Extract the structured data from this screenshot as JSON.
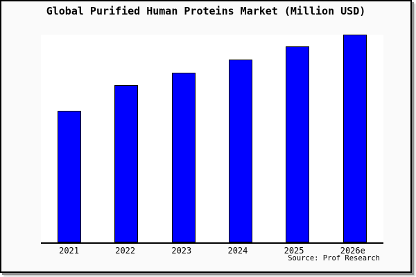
{
  "chart_data": {
    "type": "bar",
    "title": "Global Purified Human Proteins Market (Million USD)",
    "categories": [
      "2021",
      "2022",
      "2023",
      "2024",
      "2025",
      "2026e"
    ],
    "values": [
      63.3,
      75.7,
      81.7,
      88.0,
      94.3,
      100.0
    ],
    "value_note": "no y-axis labels shown; values are relative bar heights as % of 2026e bar",
    "xlabel": "",
    "ylabel": "",
    "ylim": [
      0,
      100.5
    ],
    "grid": false,
    "legend": false,
    "bar_color": "#0000ff",
    "bar_border_color": "#000000",
    "source": "Source: Prof Research"
  },
  "colors": {
    "panel_background": "#fafafa",
    "plot_background": "#ffffff",
    "panel_border": "#000000",
    "axis_line": "#000000",
    "text": "#000000",
    "shadow": "#8f8f8f"
  }
}
